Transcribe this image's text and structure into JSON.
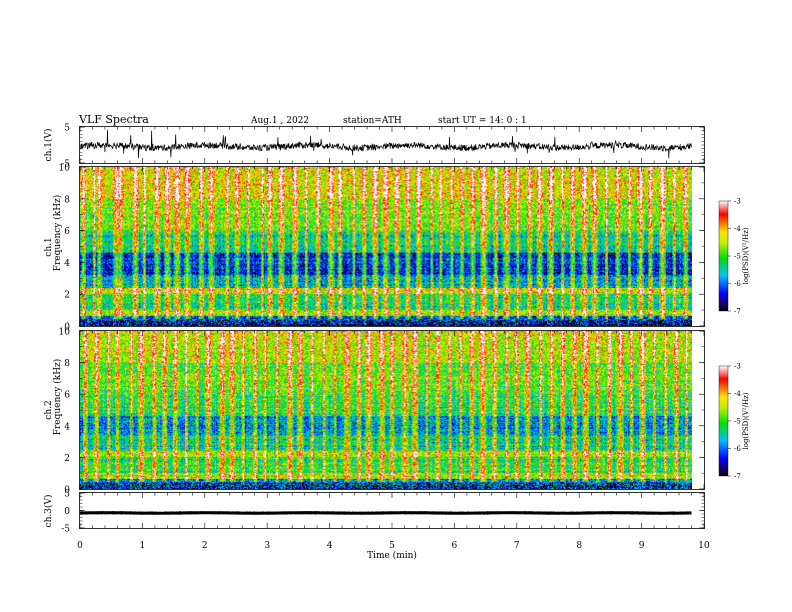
{
  "chart_data": {
    "type": "heatmap",
    "header": {
      "title": "VLF  Spectra",
      "date": "Aug.1  , 2022",
      "station": "station=ATH",
      "start": "start  UT  =   14: 0   : 1"
    },
    "x_axis": {
      "label": "Time  (min)",
      "range": [
        0,
        10
      ],
      "ticks": [
        "0",
        "1",
        "2",
        "3",
        "4",
        "5",
        "6",
        "7",
        "8",
        "9",
        "10"
      ],
      "data_end": 9.8
    },
    "panels": [
      {
        "id": "ch1-waveform",
        "type": "line",
        "ylabel": "ch.1(V)",
        "ylim": [
          -5,
          5
        ],
        "yticks": [
          "5",
          "-5"
        ],
        "baseline": -0.4,
        "amplitude": 1.5
      },
      {
        "id": "ch1-spectrogram",
        "type": "heatmap",
        "ylabel_top": "ch.1",
        "ylabel": "Frequency  (kHz)",
        "ylim": [
          0,
          10
        ],
        "yticks": [
          "0",
          "2",
          "4",
          "6",
          "8",
          "10"
        ],
        "colorbar": {
          "label": "log(PSD)(V²/Hz)",
          "range": [
            -7,
            -3
          ],
          "ticks": [
            "-3",
            "-4",
            "-5",
            "-6",
            "-7"
          ]
        },
        "bands": [
          {
            "from": 0.0,
            "to": 0.6,
            "level": -6.2
          },
          {
            "from": 0.6,
            "to": 1.0,
            "level": -4.6
          },
          {
            "from": 1.0,
            "to": 2.0,
            "level": -5.3
          },
          {
            "from": 2.0,
            "to": 2.4,
            "level": -4.4
          },
          {
            "from": 2.4,
            "to": 3.2,
            "level": -5.7
          },
          {
            "from": 3.2,
            "to": 4.6,
            "level": -6.3
          },
          {
            "from": 4.6,
            "to": 6.0,
            "level": -5.4
          },
          {
            "from": 6.0,
            "to": 8.0,
            "level": -4.8
          },
          {
            "from": 8.0,
            "to": 10.0,
            "level": -4.3
          }
        ],
        "bursts": [
          0.05,
          0.22,
          0.31,
          0.58,
          0.64,
          0.88,
          1.02,
          1.24,
          1.39,
          1.55,
          1.71,
          1.93,
          2.1,
          2.36,
          2.52,
          2.69,
          2.91,
          3.05,
          3.22,
          3.44,
          3.62,
          3.81,
          4.02,
          4.17,
          4.38,
          4.55,
          4.72,
          4.9,
          5.08,
          5.26,
          5.43,
          5.63,
          5.78,
          5.95,
          6.12,
          6.3,
          6.47,
          6.66,
          6.83,
          7.01,
          7.2,
          7.37,
          7.55,
          7.73,
          7.9,
          8.08,
          8.25,
          8.44,
          8.62,
          8.8,
          8.98,
          9.14,
          9.33,
          9.52,
          9.7
        ]
      },
      {
        "id": "ch2-spectrogram",
        "type": "heatmap",
        "ylabel_top": "ch.2",
        "ylabel": "Frequency  (kHz)",
        "ylim": [
          0,
          10
        ],
        "yticks": [
          "0",
          "2",
          "4",
          "6",
          "8",
          "10"
        ],
        "colorbar": {
          "label": "log(PSD)(V²/Hz)",
          "range": [
            -7,
            -3
          ],
          "ticks": [
            "-3",
            "-4",
            "-5",
            "-6",
            "-7"
          ]
        },
        "bands": [
          {
            "from": 0.0,
            "to": 0.6,
            "level": -5.9
          },
          {
            "from": 0.6,
            "to": 1.0,
            "level": -4.6
          },
          {
            "from": 1.0,
            "to": 2.0,
            "level": -5.2
          },
          {
            "from": 2.0,
            "to": 2.4,
            "level": -4.5
          },
          {
            "from": 2.4,
            "to": 3.4,
            "level": -5.4
          },
          {
            "from": 3.4,
            "to": 4.6,
            "level": -5.9
          },
          {
            "from": 4.6,
            "to": 6.0,
            "level": -5.2
          },
          {
            "from": 6.0,
            "to": 8.0,
            "level": -4.9
          },
          {
            "from": 8.0,
            "to": 10.0,
            "level": -4.5
          }
        ],
        "bursts": [
          0.08,
          0.26,
          0.45,
          0.6,
          0.81,
          0.97,
          1.18,
          1.35,
          1.52,
          1.7,
          1.88,
          2.05,
          2.27,
          2.44,
          2.61,
          2.8,
          2.97,
          3.15,
          3.36,
          3.53,
          3.72,
          3.9,
          4.08,
          4.28,
          4.46,
          4.63,
          4.84,
          5.0,
          5.2,
          5.37,
          5.56,
          5.74,
          5.92,
          6.1,
          6.28,
          6.46,
          6.65,
          6.84,
          7.0,
          7.18,
          7.38,
          7.56,
          7.74,
          7.92,
          8.1,
          8.3,
          8.48,
          8.66,
          8.84,
          9.02,
          9.2,
          9.38,
          9.56,
          9.72
        ]
      },
      {
        "id": "ch3-waveform",
        "type": "line",
        "ylabel": "ch.3(V)",
        "ylim": [
          -5,
          5
        ],
        "yticks": [
          "5",
          "0",
          "-5"
        ],
        "baseline": -0.7,
        "amplitude": 0.25
      }
    ]
  }
}
